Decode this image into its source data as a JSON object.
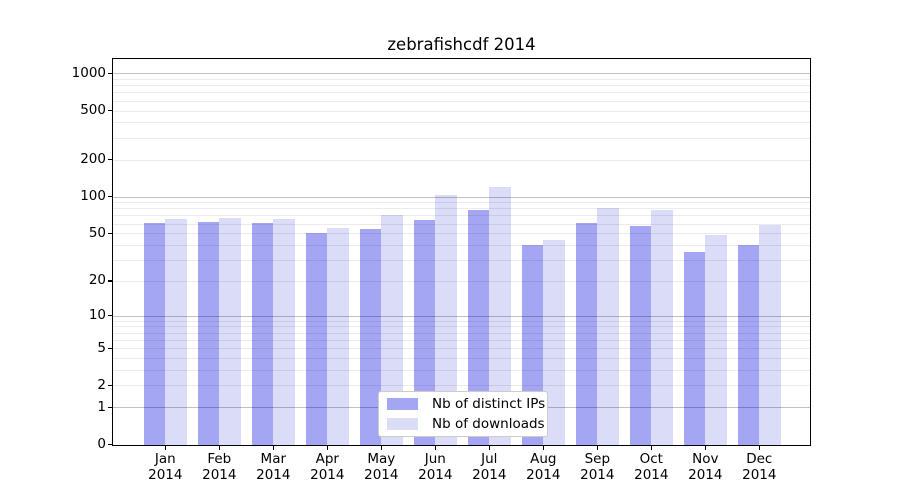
{
  "title": "zebrafishcdf 2014",
  "chart_data": {
    "type": "bar",
    "title": "zebrafishcdf 2014",
    "categories": [
      "Jan 2014",
      "Feb 2014",
      "Mar 2014",
      "Apr 2014",
      "May 2014",
      "Jun 2014",
      "Jul 2014",
      "Aug 2014",
      "Sep 2014",
      "Oct 2014",
      "Nov 2014",
      "Dec 2014"
    ],
    "series": [
      {
        "name": "Nb of distinct IPs",
        "color": "#a5a6f3",
        "values": [
          61,
          62,
          61,
          50,
          54,
          64,
          77,
          40,
          61,
          57,
          35,
          40
        ]
      },
      {
        "name": "Nb of downloads",
        "color": "#dadcf8",
        "values": [
          66,
          67,
          66,
          55,
          71,
          103,
          119,
          44,
          80,
          77,
          48,
          58
        ]
      }
    ],
    "xlabel": "",
    "ylabel": "",
    "yscale": "log(1+x)",
    "ylim": [
      0,
      1300
    ],
    "y_ticks": [
      0,
      1,
      2,
      5,
      10,
      20,
      50,
      100,
      200,
      500,
      1000
    ],
    "grid": "on",
    "grid_minor_values": [
      1,
      2,
      3,
      4,
      5,
      6,
      7,
      8,
      9,
      10,
      20,
      30,
      40,
      50,
      60,
      70,
      80,
      90,
      100,
      200,
      300,
      400,
      500,
      600,
      700,
      800,
      900
    ],
    "grid_major_values": [
      1,
      10,
      100,
      1000
    ],
    "legend_position": "lower center"
  },
  "legend": {
    "items": [
      {
        "label": "Nb of distinct IPs"
      },
      {
        "label": "Nb of downloads"
      }
    ]
  }
}
